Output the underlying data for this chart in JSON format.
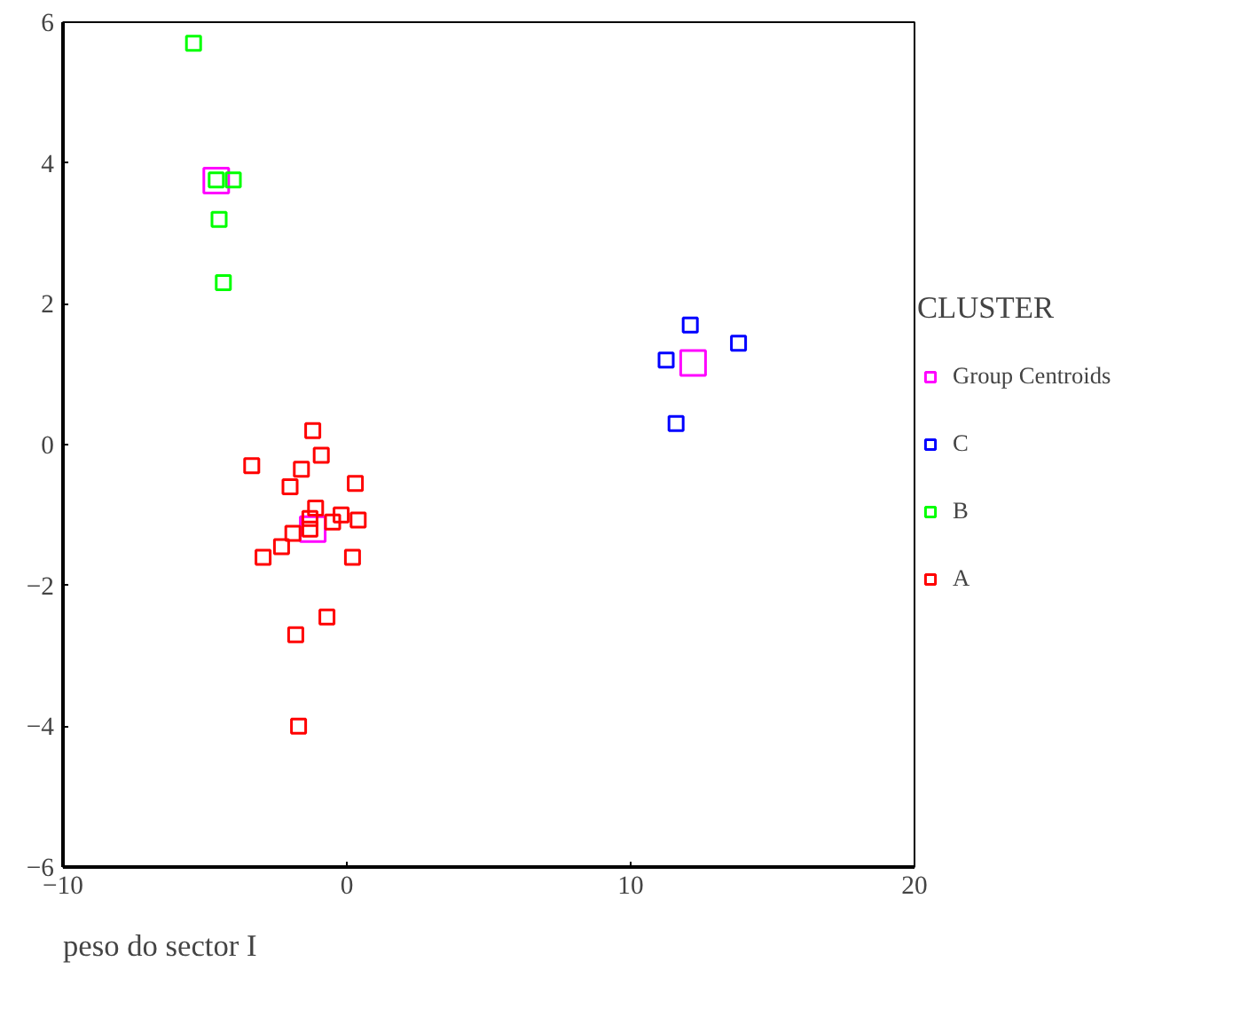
{
  "chart_data": {
    "type": "scatter",
    "xlabel": "peso do sector I",
    "legend_title": "CLUSTER",
    "legend": "right",
    "marker": "square",
    "grid": false,
    "xlim": [
      -10,
      20
    ],
    "xticks": [
      -10,
      0,
      10,
      20
    ],
    "ylim": [
      -6,
      6
    ],
    "yticks": [
      -6,
      -4,
      -2,
      0,
      2,
      4,
      6
    ],
    "series": [
      {
        "name": "Group Centroids",
        "color": "#ff00ff",
        "x": [
          -1.2,
          -4.6,
          12.2
        ],
        "values": [
          -1.2,
          3.75,
          1.16
        ]
      },
      {
        "name": "C",
        "color": "#0000ff",
        "x": [
          12.1,
          13.8,
          11.25,
          11.6
        ],
        "values": [
          1.7,
          1.44,
          1.2,
          0.3
        ]
      },
      {
        "name": "B",
        "color": "#00ff00",
        "x": [
          -5.4,
          -4.6,
          -4.0,
          -4.5,
          -4.35
        ],
        "values": [
          5.7,
          3.76,
          3.76,
          3.2,
          2.3
        ]
      },
      {
        "name": "A",
        "color": "#ff0000",
        "x": [
          -1.2,
          -0.9,
          -3.35,
          -1.6,
          -2.0,
          0.3,
          -1.1,
          -0.2,
          -0.5,
          0.4,
          -1.3,
          -1.3,
          -1.9,
          -2.3,
          -2.95,
          0.2,
          -0.7,
          -1.8,
          -1.7
        ],
        "values": [
          0.2,
          -0.15,
          -0.3,
          -0.35,
          -0.6,
          -0.55,
          -0.9,
          -1.0,
          -1.1,
          -1.07,
          -1.05,
          -1.2,
          -1.26,
          -1.45,
          -1.6,
          -1.6,
          -2.45,
          -2.7,
          -4.0
        ]
      }
    ]
  }
}
